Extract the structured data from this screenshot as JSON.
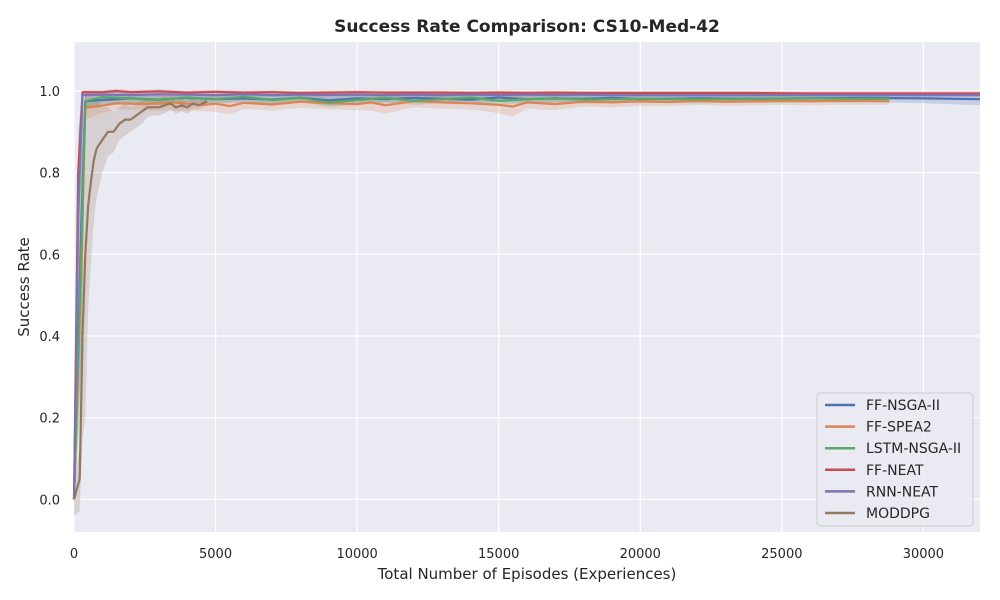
{
  "chart_data": {
    "type": "line",
    "title": "Success Rate Comparison: CS10-Med-42",
    "xlabel": "Total Number of Episodes (Experiences)",
    "ylabel": "Success Rate",
    "xlim": [
      0,
      32000
    ],
    "ylim": [
      -0.08,
      1.12
    ],
    "xticks": [
      0,
      5000,
      10000,
      15000,
      20000,
      25000,
      30000
    ],
    "yticks": [
      0.0,
      0.2,
      0.4,
      0.6,
      0.8,
      1.0
    ],
    "ytick_labels": [
      "0.0",
      "0.2",
      "0.4",
      "0.6",
      "0.8",
      "1.0"
    ],
    "grid": true,
    "legend_position": "bottom-right",
    "series": [
      {
        "name": "FF-NSGA-II",
        "color": "#4c72b0",
        "x": [
          0,
          250,
          400,
          1000,
          2000,
          3000,
          4000,
          5000,
          6000,
          7000,
          8000,
          9000,
          10000,
          11000,
          12000,
          13000,
          14000,
          15000,
          16000,
          17000,
          18000,
          19000,
          20000,
          22000,
          24000,
          26000,
          28000,
          30000,
          32000
        ],
        "y": [
          0.0,
          0.65,
          0.975,
          0.978,
          0.982,
          0.979,
          0.983,
          0.98,
          0.982,
          0.979,
          0.983,
          0.977,
          0.982,
          0.98,
          0.983,
          0.981,
          0.979,
          0.984,
          0.98,
          0.982,
          0.981,
          0.983,
          0.98,
          0.982,
          0.981,
          0.982,
          0.983,
          0.982,
          0.98
        ],
        "band": [
          0.01,
          0.3,
          0.02,
          0.015,
          0.012,
          0.014,
          0.01,
          0.012,
          0.01,
          0.012,
          0.01,
          0.012,
          0.01,
          0.01,
          0.01,
          0.01,
          0.01,
          0.01,
          0.01,
          0.01,
          0.01,
          0.01,
          0.01,
          0.01,
          0.01,
          0.01,
          0.01,
          0.012,
          0.015
        ]
      },
      {
        "name": "FF-SPEA2",
        "color": "#dd8452",
        "x": [
          0,
          250,
          400,
          800,
          1500,
          2500,
          3500,
          4500,
          5000,
          5500,
          6000,
          7000,
          8000,
          9000,
          10000,
          10500,
          11000,
          12000,
          13000,
          14000,
          15000,
          15500,
          16000,
          17000,
          18000,
          19000,
          20000,
          21000,
          22000,
          23000,
          24000,
          25000,
          26000,
          27000,
          28000,
          28800
        ],
        "y": [
          0.0,
          0.55,
          0.96,
          0.962,
          0.97,
          0.968,
          0.972,
          0.966,
          0.969,
          0.963,
          0.971,
          0.967,
          0.974,
          0.97,
          0.968,
          0.972,
          0.965,
          0.975,
          0.972,
          0.97,
          0.966,
          0.962,
          0.972,
          0.968,
          0.974,
          0.972,
          0.975,
          0.973,
          0.976,
          0.974,
          0.975,
          0.976,
          0.975,
          0.976,
          0.976,
          0.976
        ],
        "band": [
          0.01,
          0.3,
          0.03,
          0.02,
          0.015,
          0.015,
          0.02,
          0.015,
          0.02,
          0.02,
          0.015,
          0.015,
          0.015,
          0.015,
          0.015,
          0.02,
          0.02,
          0.015,
          0.015,
          0.015,
          0.02,
          0.025,
          0.015,
          0.015,
          0.012,
          0.012,
          0.012,
          0.01,
          0.01,
          0.01,
          0.01,
          0.01,
          0.01,
          0.01,
          0.01,
          0.01
        ]
      },
      {
        "name": "LSTM-NSGA-II",
        "color": "#55a868",
        "x": [
          0,
          250,
          400,
          1000,
          2000,
          3000,
          4000,
          5000,
          6000,
          7000,
          8000,
          9000,
          10000,
          11000,
          12000,
          13000,
          14000,
          15000,
          16000,
          17000,
          18000,
          19000,
          20000,
          22000,
          24000,
          26000,
          28000,
          28800
        ],
        "y": [
          0.0,
          0.6,
          0.975,
          0.985,
          0.982,
          0.978,
          0.984,
          0.98,
          0.986,
          0.978,
          0.983,
          0.972,
          0.978,
          0.983,
          0.976,
          0.98,
          0.984,
          0.976,
          0.98,
          0.982,
          0.979,
          0.98,
          0.981,
          0.98,
          0.981,
          0.982,
          0.981,
          0.981
        ],
        "band": [
          0.01,
          0.3,
          0.02,
          0.015,
          0.012,
          0.012,
          0.01,
          0.01,
          0.01,
          0.01,
          0.01,
          0.012,
          0.012,
          0.01,
          0.01,
          0.01,
          0.01,
          0.01,
          0.01,
          0.01,
          0.01,
          0.01,
          0.01,
          0.01,
          0.01,
          0.01,
          0.01,
          0.01
        ]
      },
      {
        "name": "FF-NEAT",
        "color": "#c44e52",
        "x": [
          0,
          150,
          300,
          1000,
          1500,
          2000,
          3000,
          4000,
          5000,
          6000,
          7000,
          8000,
          9000,
          10000,
          11000,
          12000,
          13000,
          14000,
          15000,
          16000,
          17000,
          18000,
          19000,
          20000,
          22000,
          24000,
          26000,
          28000,
          30000,
          32000
        ],
        "y": [
          0.0,
          0.8,
          0.997,
          0.997,
          1.0,
          0.997,
          0.999,
          0.996,
          0.998,
          0.996,
          0.997,
          0.995,
          0.996,
          0.997,
          0.996,
          0.996,
          0.996,
          0.995,
          0.996,
          0.995,
          0.996,
          0.995,
          0.995,
          0.995,
          0.995,
          0.995,
          0.994,
          0.994,
          0.994,
          0.994
        ],
        "band": [
          0.01,
          0.1,
          0.005,
          0.005,
          0.005,
          0.005,
          0.005,
          0.005,
          0.005,
          0.005,
          0.005,
          0.005,
          0.005,
          0.005,
          0.005,
          0.005,
          0.005,
          0.005,
          0.005,
          0.005,
          0.005,
          0.005,
          0.005,
          0.005,
          0.005,
          0.005,
          0.005,
          0.005,
          0.005,
          0.005
        ]
      },
      {
        "name": "RNN-NEAT",
        "color": "#8172b3",
        "x": [
          0,
          150,
          300,
          1000,
          2000,
          3000,
          4000,
          5000,
          6000,
          7000,
          8000,
          9000,
          10000,
          11000,
          12000,
          13000,
          14000,
          15000,
          16000,
          17000,
          18000,
          19000,
          20000,
          22000,
          24000,
          26000,
          28000,
          30000,
          32000
        ],
        "y": [
          0.0,
          0.7,
          0.99,
          0.991,
          0.99,
          0.992,
          0.991,
          0.99,
          0.992,
          0.99,
          0.991,
          0.99,
          0.991,
          0.99,
          0.991,
          0.99,
          0.991,
          0.99,
          0.991,
          0.99,
          0.991,
          0.99,
          0.99,
          0.99,
          0.99,
          0.99,
          0.99,
          0.99,
          0.99
        ],
        "band": [
          0.01,
          0.15,
          0.006,
          0.006,
          0.006,
          0.006,
          0.006,
          0.006,
          0.006,
          0.006,
          0.006,
          0.006,
          0.006,
          0.006,
          0.006,
          0.006,
          0.006,
          0.006,
          0.006,
          0.006,
          0.006,
          0.006,
          0.006,
          0.006,
          0.006,
          0.006,
          0.006,
          0.006,
          0.006
        ]
      },
      {
        "name": "MODDPG",
        "color": "#937860",
        "x": [
          0,
          200,
          300,
          400,
          500,
          600,
          700,
          800,
          900,
          1000,
          1200,
          1400,
          1600,
          1800,
          2000,
          2200,
          2400,
          2600,
          2800,
          3000,
          3200,
          3400,
          3600,
          3800,
          4000,
          4200,
          4400,
          4700
        ],
        "y": [
          0.0,
          0.05,
          0.4,
          0.6,
          0.72,
          0.78,
          0.83,
          0.86,
          0.87,
          0.88,
          0.9,
          0.9,
          0.92,
          0.93,
          0.93,
          0.94,
          0.95,
          0.96,
          0.96,
          0.96,
          0.965,
          0.97,
          0.96,
          0.965,
          0.96,
          0.97,
          0.965,
          0.975
        ],
        "band": [
          0.04,
          0.08,
          0.25,
          0.4,
          0.25,
          0.2,
          0.15,
          0.12,
          0.1,
          0.08,
          0.06,
          0.05,
          0.04,
          0.04,
          0.03,
          0.03,
          0.03,
          0.025,
          0.02,
          0.02,
          0.02,
          0.015,
          0.015,
          0.015,
          0.015,
          0.015,
          0.01,
          0.01
        ]
      }
    ]
  }
}
